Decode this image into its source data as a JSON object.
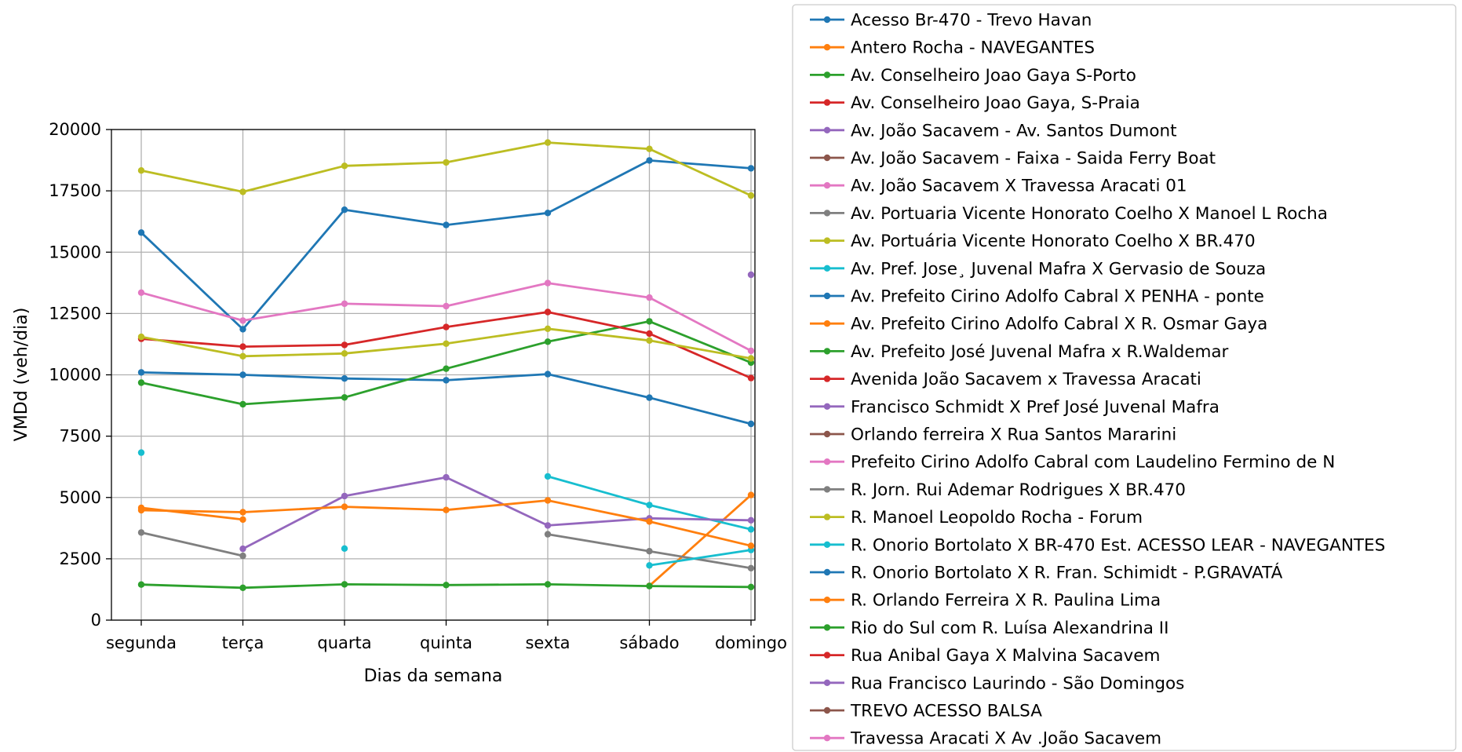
{
  "chart_data": {
    "type": "line",
    "xlabel": "Dias da semana",
    "ylabel": "VMDd (veh/dia)",
    "categories": [
      "segunda",
      "terça",
      "quarta",
      "quinta",
      "sexta",
      "sábado",
      "domingo"
    ],
    "ylim": [
      0,
      20000
    ],
    "yticks": [
      0,
      2500,
      5000,
      7500,
      10000,
      12500,
      15000,
      17500,
      20000
    ],
    "grid": true,
    "legend_position": "right",
    "series": [
      {
        "name": "Acesso Br-470 - Trevo Havan",
        "color": "#1f77b4",
        "values": [
          10100,
          10000,
          9850,
          9780,
          10030,
          9070,
          8000
        ]
      },
      {
        "name": "Antero Rocha - NAVEGANTES",
        "color": "#ff7f0e",
        "values": [
          null,
          null,
          null,
          null,
          null,
          1400,
          5100
        ]
      },
      {
        "name": "Av. Conselheiro Joao Gaya S-Porto",
        "color": "#2ca02c",
        "values": [
          9680,
          8800,
          9080,
          10250,
          11350,
          12180,
          10500
        ]
      },
      {
        "name": "Av. Conselheiro Joao Gaya, S-Praia",
        "color": "#d62728",
        "values": [
          11470,
          11150,
          11220,
          11950,
          12560,
          11680,
          9870
        ]
      },
      {
        "name": "Av. João Sacavem - Av. Santos Dumont",
        "color": "#9467bd",
        "values": [
          null,
          null,
          null,
          null,
          null,
          null,
          14080
        ]
      },
      {
        "name": "Av. João Sacavem - Faixa - Saida Ferry Boat",
        "color": "#8c564b",
        "values": [
          null,
          null,
          null,
          null,
          null,
          null,
          null
        ]
      },
      {
        "name": "Av. João Sacavem X Travessa Aracati 01",
        "color": "#e377c2",
        "values": [
          null,
          null,
          null,
          null,
          null,
          null,
          null
        ]
      },
      {
        "name": "Av. Portuaria Vicente Honorato Coelho X Manoel L Rocha",
        "color": "#7f7f7f",
        "values": [
          3570,
          2620,
          null,
          null,
          3500,
          2810,
          2120
        ]
      },
      {
        "name": "Av. Portuária Vicente Honorato Coelho X BR.470",
        "color": "#bcbd22",
        "values": [
          11550,
          10760,
          10870,
          11270,
          11880,
          11400,
          10670
        ]
      },
      {
        "name": "Av. Pref. Jose¸ Juvenal Mafra X Gervasio de Souza",
        "color": "#17becf",
        "values": [
          6830,
          null,
          2920,
          null,
          5860,
          4690,
          3700
        ]
      },
      {
        "name": "Av. Prefeito Cirino Adolfo Cabral X PENHA - ponte",
        "color": "#1f77b4",
        "values": [
          15800,
          11860,
          16730,
          16110,
          16600,
          18740,
          18420
        ]
      },
      {
        "name": "Av. Prefeito Cirino Adolfo Cabral X R. Osmar Gaya",
        "color": "#ff7f0e",
        "values": [
          4580,
          4100,
          null,
          null,
          null,
          null,
          null
        ]
      },
      {
        "name": "Av. Prefeito José Juvenal Mafra x R.Waldemar",
        "color": "#2ca02c",
        "values": [
          1450,
          1320,
          1460,
          1430,
          1460,
          1390,
          1350
        ]
      },
      {
        "name": "Avenida João Sacavem x Travessa Aracati",
        "color": "#d62728",
        "values": [
          null,
          null,
          null,
          null,
          null,
          null,
          null
        ]
      },
      {
        "name": "Francisco Schmidt X Pref José Juvenal Mafra",
        "color": "#9467bd",
        "values": [
          null,
          2910,
          5060,
          5820,
          3860,
          4150,
          4070
        ]
      },
      {
        "name": "Orlando ferreira X Rua Santos Mararini",
        "color": "#8c564b",
        "values": [
          null,
          null,
          null,
          null,
          null,
          null,
          null
        ]
      },
      {
        "name": "Prefeito Cirino Adolfo Cabral com Laudelino Fermino de N",
        "color": "#e377c2",
        "values": [
          13350,
          12210,
          12900,
          12800,
          13740,
          13150,
          10980
        ]
      },
      {
        "name": "R. Jorn. Rui Ademar Rodrigues X BR.470",
        "color": "#7f7f7f",
        "values": [
          null,
          null,
          null,
          null,
          null,
          null,
          null
        ]
      },
      {
        "name": "R. Manoel Leopoldo Rocha - Forum",
        "color": "#bcbd22",
        "values": [
          18330,
          17460,
          18520,
          18660,
          19470,
          19210,
          17310
        ]
      },
      {
        "name": "R. Onorio Bortolato X BR-470 Est. ACESSO LEAR - NAVEGANTES",
        "color": "#17becf",
        "values": [
          null,
          null,
          null,
          null,
          null,
          2230,
          2860
        ]
      },
      {
        "name": "R. Onorio Bortolato X R. Fran. Schimidt - P.GRAVATÁ",
        "color": "#1f77b4",
        "values": [
          null,
          null,
          null,
          null,
          null,
          null,
          null
        ]
      },
      {
        "name": "R. Orlando Ferreira X R. Paulina Lima",
        "color": "#ff7f0e",
        "values": [
          4480,
          4400,
          4620,
          4490,
          4880,
          4020,
          3030
        ]
      },
      {
        "name": "Rio do Sul com R. Luísa Alexandrina II",
        "color": "#2ca02c",
        "values": [
          null,
          null,
          null,
          null,
          null,
          null,
          null
        ]
      },
      {
        "name": "Rua Anibal Gaya X Malvina Sacavem",
        "color": "#d62728",
        "values": [
          null,
          null,
          null,
          null,
          null,
          null,
          null
        ]
      },
      {
        "name": "Rua Francisco Laurindo - São Domingos",
        "color": "#9467bd",
        "values": [
          null,
          null,
          null,
          null,
          null,
          null,
          null
        ]
      },
      {
        "name": "TREVO ACESSO BALSA",
        "color": "#8c564b",
        "values": [
          null,
          null,
          null,
          null,
          null,
          null,
          null
        ]
      },
      {
        "name": "Travessa Aracati X Av .João Sacavem",
        "color": "#e377c2",
        "values": [
          null,
          null,
          null,
          null,
          null,
          null,
          null
        ]
      }
    ]
  }
}
